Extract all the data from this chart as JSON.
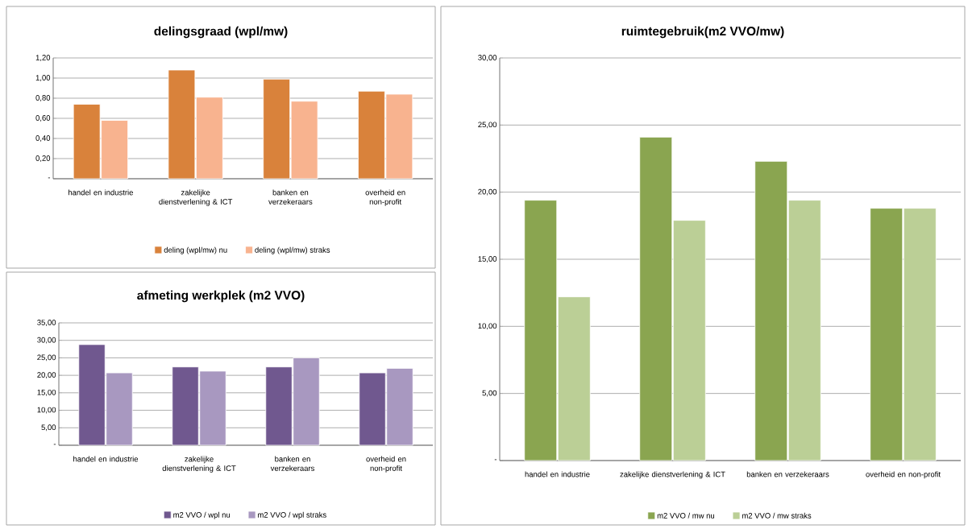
{
  "chart_data": [
    {
      "type": "bar",
      "title": "delingsgraad (wpl/mw)",
      "categories": [
        "handel en industrie",
        "zakelijke dienstverlening & ICT",
        "banken en verzekeraars",
        "overheid en non-profit"
      ],
      "series": [
        {
          "name": "deling (wpl/mw) nu",
          "color": "#d9823b",
          "values": [
            0.74,
            1.08,
            0.99,
            0.87
          ]
        },
        {
          "name": "deling (wpl/mw) straks",
          "color": "#f8b38f",
          "values": [
            0.58,
            0.81,
            0.77,
            0.84
          ]
        }
      ],
      "ylim": [
        0,
        1.2
      ],
      "yticks": [
        {
          "value": 0,
          "label": "-"
        },
        {
          "value": 0.2,
          "label": "0,20"
        },
        {
          "value": 0.4,
          "label": "0,40"
        },
        {
          "value": 0.6,
          "label": "0,60"
        },
        {
          "value": 0.8,
          "label": "0,80"
        },
        {
          "value": 1.0,
          "label": "1,00"
        },
        {
          "value": 1.2,
          "label": "1,20"
        }
      ],
      "grid": "y",
      "legend": "bottom"
    },
    {
      "type": "bar",
      "title": "ruimtegebruik(m2 VVO/mw)",
      "categories": [
        "handel en industrie",
        "zakelijke dienstverlening & ICT",
        "banken en verzekeraars",
        "overheid en non-profit"
      ],
      "series": [
        {
          "name": "m2 VVO / mw nu",
          "color": "#8aa550",
          "values": [
            19.4,
            24.1,
            22.3,
            18.8
          ]
        },
        {
          "name": "m2 VVO / mw straks",
          "color": "#bbcf96",
          "values": [
            12.2,
            17.9,
            19.4,
            18.8
          ]
        }
      ],
      "ylim": [
        0,
        30
      ],
      "yticks": [
        {
          "value": 0,
          "label": "-"
        },
        {
          "value": 5,
          "label": "5,00"
        },
        {
          "value": 10,
          "label": "10,00"
        },
        {
          "value": 15,
          "label": "15,00"
        },
        {
          "value": 20,
          "label": "20,00"
        },
        {
          "value": 25,
          "label": "25,00"
        },
        {
          "value": 30,
          "label": "30,00"
        }
      ],
      "grid": "y",
      "legend": "bottom"
    },
    {
      "type": "bar",
      "title": "afmeting werkplek (m2 VVO)",
      "categories": [
        "handel en industrie",
        "zakelijke dienstverlening & ICT",
        "banken en verzekeraars",
        "overheid en non-profit"
      ],
      "series": [
        {
          "name": "m2 VVO / wpl nu",
          "color": "#70588f",
          "values": [
            28.8,
            22.4,
            22.4,
            20.7
          ]
        },
        {
          "name": "m2 VVO / wpl straks",
          "color": "#a898c0",
          "values": [
            20.7,
            21.2,
            25.0,
            22.0
          ]
        }
      ],
      "ylim": [
        0,
        35
      ],
      "yticks": [
        {
          "value": 0,
          "label": "-"
        },
        {
          "value": 5,
          "label": "5,00"
        },
        {
          "value": 10,
          "label": "10,00"
        },
        {
          "value": 15,
          "label": "15,00"
        },
        {
          "value": 20,
          "label": "20,00"
        },
        {
          "value": 25,
          "label": "25,00"
        },
        {
          "value": 30,
          "label": "30,00"
        },
        {
          "value": 35,
          "label": "35,00"
        }
      ],
      "grid": "y",
      "legend": "bottom"
    }
  ]
}
